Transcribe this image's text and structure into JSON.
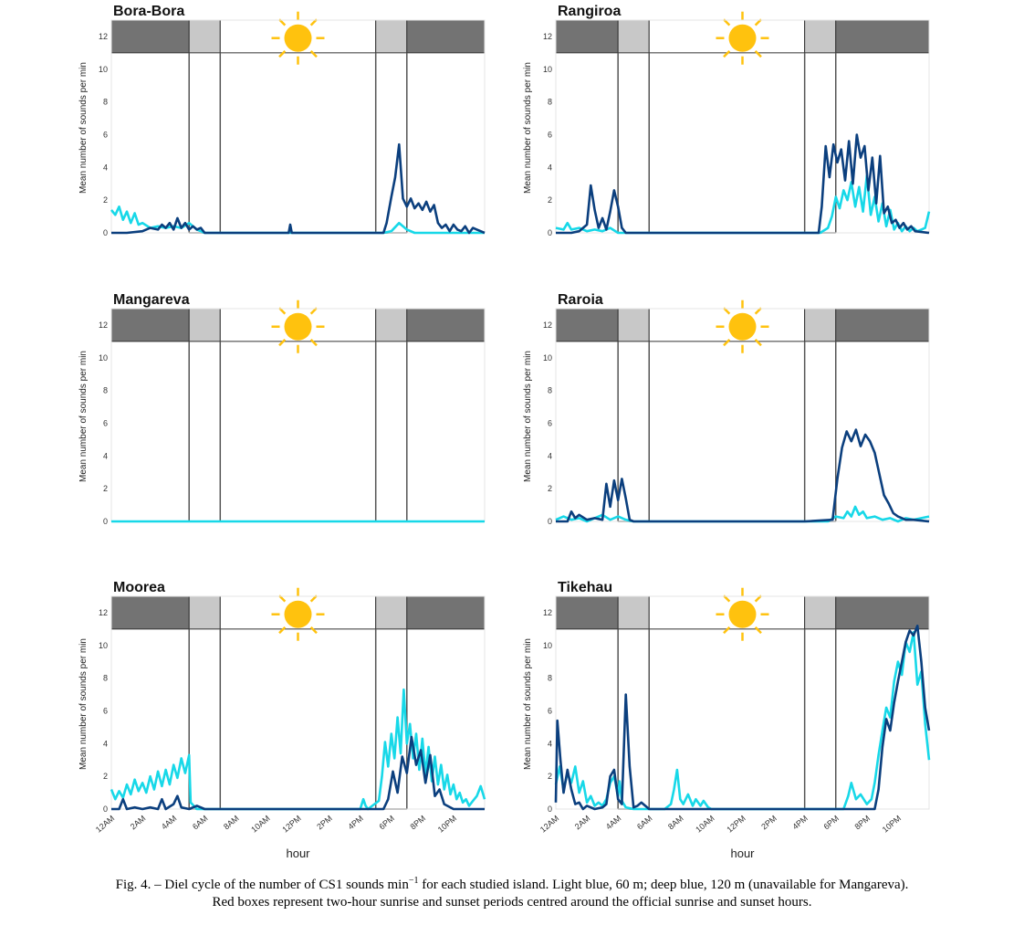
{
  "figure": {
    "x_label": "hour",
    "y_label": "Mean number of sounds per min",
    "x_ticks": [
      "12AM",
      "2AM",
      "4AM",
      "6AM",
      "8AM",
      "10AM",
      "12PM",
      "2PM",
      "4PM",
      "6PM",
      "8PM",
      "10PM"
    ],
    "x_ticks_right": [
      "12AM",
      "2AM",
      "4AM",
      "6AM",
      "8AM",
      "10AM",
      "12PM",
      "2PM",
      "4PM",
      "6PM",
      "8PM",
      "10PM"
    ],
    "y_ticks": [
      0,
      2,
      4,
      6,
      8,
      10,
      12
    ],
    "colors": {
      "light_blue": "#17d8e8",
      "deep_blue": "#0b3f7e",
      "night": "#737373",
      "twilight": "#c8c8c8",
      "sun": "#ffc20e"
    }
  },
  "caption": {
    "prefix": "Fig. 4. – Diel cycle of the number of CS1 sounds min",
    "sup": "−1",
    "line1_rest": " for each studied island. Light blue, 60 m; deep blue, 120 m (unavailable for Mangareva).",
    "line2": "Red boxes represent two-hour sunrise and sunset periods centred around the official sunrise and sunset hours."
  },
  "chart_data": [
    {
      "type": "line",
      "title": "Bora-Bora",
      "ylim": [
        0,
        13
      ],
      "xlim": [
        0,
        24
      ],
      "sunrise_box": [
        5.0,
        7.0
      ],
      "sunset_box": [
        17.0,
        19.0
      ],
      "series": [
        {
          "color_key": "light_blue",
          "x": [
            0,
            0.25,
            0.5,
            0.75,
            1,
            1.25,
            1.5,
            1.75,
            2,
            2.5,
            3,
            3.5,
            4,
            4.5,
            5,
            5.5,
            5.75,
            6,
            12,
            17.5,
            18,
            18.5,
            19,
            19.5,
            20,
            24
          ],
          "y": [
            1.4,
            1.1,
            1.6,
            0.8,
            1.3,
            0.6,
            1.2,
            0.5,
            0.6,
            0.3,
            0.4,
            0.3,
            0.4,
            0.3,
            0.6,
            0.2,
            0.1,
            0,
            0,
            0,
            0.1,
            0.6,
            0.2,
            0,
            0,
            0
          ]
        },
        {
          "color_key": "deep_blue",
          "x": [
            0,
            1,
            2,
            2.5,
            3,
            3.25,
            3.5,
            3.75,
            4,
            4.25,
            4.5,
            4.75,
            5,
            5.25,
            5.5,
            5.75,
            6,
            11.4,
            11.5,
            11.6,
            11.7,
            17.5,
            17.7,
            18,
            18.25,
            18.5,
            18.75,
            19,
            19.25,
            19.5,
            19.75,
            20,
            20.25,
            20.5,
            20.75,
            21,
            21.25,
            21.5,
            21.75,
            22,
            22.25,
            22.5,
            22.75,
            23,
            23.25,
            23.5,
            23.75,
            24
          ],
          "y": [
            0,
            0,
            0.1,
            0.3,
            0.2,
            0.5,
            0.3,
            0.6,
            0.2,
            0.9,
            0.3,
            0.6,
            0.2,
            0.4,
            0.2,
            0.3,
            0,
            0,
            0.5,
            0,
            0,
            0,
            0.6,
            2.2,
            3.4,
            5.4,
            2.1,
            1.6,
            2.1,
            1.5,
            1.8,
            1.4,
            1.9,
            1.3,
            1.7,
            0.6,
            0.3,
            0.5,
            0.1,
            0.5,
            0.2,
            0.1,
            0.4,
            0,
            0.3,
            0.2,
            0.1,
            0
          ]
        }
      ]
    },
    {
      "type": "line",
      "title": "Rangiroa",
      "ylim": [
        0,
        13
      ],
      "xlim": [
        0,
        24
      ],
      "sunrise_box": [
        4.0,
        6.0
      ],
      "sunset_box": [
        16.0,
        18.0
      ],
      "series": [
        {
          "color_key": "light_blue",
          "x": [
            0,
            0.5,
            0.75,
            1,
            1.5,
            2,
            2.5,
            3,
            3.5,
            4,
            4.5,
            5,
            16.5,
            17,
            17.5,
            17.75,
            18,
            18.25,
            18.5,
            18.75,
            19,
            19.25,
            19.5,
            19.75,
            20,
            20.25,
            20.5,
            20.75,
            21,
            21.25,
            21.5,
            21.75,
            22,
            22.25,
            22.5,
            22.75,
            23,
            23.25,
            23.5,
            23.75,
            24
          ],
          "y": [
            0.3,
            0.2,
            0.6,
            0.2,
            0.3,
            0.1,
            0.2,
            0.1,
            0.3,
            0,
            0,
            0,
            0,
            0,
            0.3,
            1.0,
            2.2,
            1.5,
            2.6,
            2.0,
            3.1,
            1.6,
            2.8,
            1.3,
            3.5,
            1.1,
            2.2,
            0.7,
            1.8,
            0.4,
            1.4,
            0.2,
            0.6,
            0.1,
            0.4,
            0.1,
            0.3,
            0.1,
            0.2,
            0.3,
            1.3
          ]
        },
        {
          "color_key": "deep_blue",
          "x": [
            0,
            1,
            1.5,
            2,
            2.25,
            2.5,
            2.75,
            3,
            3.25,
            3.5,
            3.75,
            4,
            4.25,
            4.5,
            5,
            16.5,
            16.9,
            17.1,
            17.35,
            17.6,
            17.85,
            18.1,
            18.35,
            18.6,
            18.85,
            19.1,
            19.35,
            19.6,
            19.85,
            20.1,
            20.35,
            20.6,
            20.85,
            21.1,
            21.35,
            21.6,
            21.85,
            22.1,
            22.35,
            22.6,
            22.85,
            23.1,
            24
          ],
          "y": [
            0,
            0,
            0.1,
            0.5,
            2.9,
            1.4,
            0.3,
            0.9,
            0.2,
            1.3,
            2.6,
            1.6,
            0.3,
            0,
            0,
            0,
            0,
            1.6,
            5.3,
            3.4,
            5.4,
            4.3,
            5.1,
            3.2,
            5.6,
            3.0,
            6.0,
            4.6,
            5.3,
            2.6,
            4.6,
            1.8,
            4.7,
            1.2,
            1.6,
            0.6,
            0.8,
            0.3,
            0.6,
            0.2,
            0.4,
            0.1,
            0
          ]
        }
      ]
    },
    {
      "type": "line",
      "title": "Mangareva",
      "ylim": [
        0,
        13
      ],
      "xlim": [
        0,
        24
      ],
      "sunrise_box": [
        5.0,
        7.0
      ],
      "sunset_box": [
        17.0,
        19.0
      ],
      "series": [
        {
          "color_key": "light_blue",
          "x": [
            0,
            24
          ],
          "y": [
            0,
            0
          ]
        }
      ]
    },
    {
      "type": "line",
      "title": "Raroia",
      "ylim": [
        0,
        13
      ],
      "xlim": [
        0,
        24
      ],
      "sunrise_box": [
        4.0,
        6.0
      ],
      "sunset_box": [
        16.0,
        18.0
      ],
      "series": [
        {
          "color_key": "light_blue",
          "x": [
            0,
            0.5,
            1,
            1.5,
            2,
            2.5,
            3,
            3.5,
            4,
            4.5,
            5,
            17.5,
            18,
            18.5,
            18.75,
            19,
            19.25,
            19.5,
            19.75,
            20,
            20.5,
            21,
            21.5,
            22,
            22.5,
            23,
            23.5,
            24
          ],
          "y": [
            0.1,
            0.3,
            0.1,
            0.2,
            0,
            0.2,
            0.4,
            0.1,
            0.3,
            0.1,
            0,
            0,
            0.3,
            0.2,
            0.6,
            0.3,
            0.9,
            0.4,
            0.6,
            0.2,
            0.3,
            0.1,
            0.2,
            0,
            0.2,
            0.1,
            0.2,
            0.3
          ]
        },
        {
          "color_key": "deep_blue",
          "x": [
            0,
            0.75,
            1,
            1.25,
            1.5,
            2,
            2.5,
            3,
            3.25,
            3.5,
            3.75,
            4,
            4.25,
            4.5,
            4.75,
            5,
            16,
            17.8,
            18.1,
            18.4,
            18.7,
            19,
            19.3,
            19.6,
            19.9,
            20.2,
            20.5,
            20.8,
            21.1,
            21.4,
            21.7,
            22,
            22.5,
            23,
            24
          ],
          "y": [
            0,
            0,
            0.6,
            0.2,
            0.4,
            0.1,
            0.2,
            0.1,
            2.3,
            0.9,
            2.5,
            1.3,
            2.6,
            1.4,
            0.1,
            0,
            0,
            0.1,
            2.6,
            4.5,
            5.5,
            4.9,
            5.6,
            4.6,
            5.3,
            4.9,
            4.2,
            2.9,
            1.6,
            1.1,
            0.5,
            0.3,
            0.1,
            0.1,
            0
          ]
        }
      ]
    },
    {
      "type": "line",
      "title": "Moorea",
      "ylim": [
        0,
        13
      ],
      "xlim": [
        0,
        24
      ],
      "sunrise_box": [
        5.0,
        7.0
      ],
      "sunset_box": [
        17.0,
        19.0
      ],
      "series": [
        {
          "color_key": "light_blue",
          "x": [
            0,
            0.25,
            0.5,
            0.75,
            1,
            1.25,
            1.5,
            1.75,
            2,
            2.25,
            2.5,
            2.75,
            3,
            3.25,
            3.5,
            3.75,
            4,
            4.25,
            4.5,
            4.75,
            5,
            5.1,
            5.3,
            5.5,
            16,
            16.2,
            16.35,
            16.5,
            17.2,
            17.4,
            17.6,
            17.8,
            18,
            18.2,
            18.4,
            18.6,
            18.8,
            19,
            19.2,
            19.4,
            19.6,
            19.8,
            20,
            20.2,
            20.4,
            20.6,
            20.8,
            21,
            21.2,
            21.4,
            21.6,
            21.8,
            22,
            22.2,
            22.4,
            22.6,
            22.8,
            23,
            23.25,
            23.5,
            23.75,
            24
          ],
          "y": [
            1.2,
            0.6,
            1.1,
            0.7,
            1.5,
            0.9,
            1.8,
            1.1,
            1.6,
            1.0,
            2.0,
            1.2,
            2.3,
            1.4,
            2.4,
            1.5,
            2.7,
            1.9,
            3.1,
            2.2,
            3.3,
            0.4,
            0.2,
            0,
            0,
            0.6,
            0.2,
            0,
            0.5,
            2.0,
            4.1,
            2.6,
            4.6,
            3.1,
            5.6,
            3.4,
            7.3,
            4.0,
            5.2,
            3.1,
            4.6,
            2.4,
            4.3,
            2.1,
            3.8,
            1.7,
            3.2,
            1.5,
            2.7,
            1.2,
            2.1,
            0.9,
            1.5,
            0.6,
            1.0,
            0.4,
            0.6,
            0.2,
            0.5,
            0.8,
            1.4,
            0.6
          ]
        },
        {
          "color_key": "deep_blue",
          "x": [
            0,
            0.5,
            0.75,
            1,
            1.5,
            2,
            2.5,
            3,
            3.25,
            3.5,
            4,
            4.25,
            4.5,
            5,
            5.5,
            5.75,
            6,
            17.5,
            17.8,
            18.1,
            18.4,
            18.7,
            19,
            19.3,
            19.6,
            19.9,
            20.2,
            20.5,
            20.8,
            21.1,
            21.4,
            22,
            24
          ],
          "y": [
            0,
            0,
            0.6,
            0,
            0.1,
            0,
            0.1,
            0,
            0.6,
            0,
            0.3,
            0.8,
            0.1,
            0,
            0.2,
            0.1,
            0,
            0,
            0.6,
            2.3,
            1.0,
            3.2,
            2.2,
            4.4,
            2.7,
            3.6,
            1.6,
            3.3,
            0.8,
            1.2,
            0.3,
            0,
            0
          ]
        }
      ]
    },
    {
      "type": "line",
      "title": "Tikehau",
      "ylim": [
        0,
        13
      ],
      "xlim": [
        0,
        24
      ],
      "sunrise_box": [
        4.0,
        6.0
      ],
      "sunset_box": [
        16.0,
        18.0
      ],
      "series": [
        {
          "color_key": "light_blue",
          "x": [
            0,
            0.25,
            0.5,
            0.75,
            1,
            1.25,
            1.5,
            1.75,
            2,
            2.25,
            2.5,
            2.75,
            3,
            3.25,
            3.5,
            3.75,
            4,
            4.1,
            4.25,
            4.5,
            5,
            6,
            7,
            7.4,
            7.6,
            7.8,
            8,
            8.2,
            8.5,
            8.8,
            9,
            9.3,
            9.5,
            9.8,
            10,
            10.5,
            18.5,
            18.8,
            19,
            19.3,
            19.6,
            20,
            20.3,
            20.5,
            20.75,
            21,
            21.25,
            21.5,
            21.75,
            22,
            22.25,
            22.5,
            22.75,
            23,
            23.25,
            23.5,
            23.75,
            24
          ],
          "y": [
            1.5,
            2.6,
            1.2,
            2.2,
            1.6,
            2.6,
            1.0,
            1.7,
            0.4,
            0.8,
            0.2,
            0.4,
            0.2,
            0.6,
            1.6,
            2.0,
            0.8,
            1.7,
            0.5,
            0.1,
            0,
            0,
            0,
            0.3,
            1.2,
            2.4,
            0.6,
            0.3,
            0.9,
            0.2,
            0.6,
            0.2,
            0.5,
            0.1,
            0,
            0,
            0,
            0.8,
            1.6,
            0.6,
            0.9,
            0.3,
            0.6,
            1.6,
            3.3,
            4.8,
            6.2,
            5.6,
            7.8,
            9.0,
            8.2,
            10.2,
            9.6,
            10.8,
            7.6,
            8.4,
            5.2,
            3.0
          ]
        },
        {
          "color_key": "deep_blue",
          "x": [
            0,
            0.1,
            0.3,
            0.5,
            0.75,
            1,
            1.25,
            1.5,
            1.75,
            2,
            2.25,
            2.5,
            3,
            3.25,
            3.5,
            3.75,
            4,
            4.25,
            4.5,
            4.75,
            5,
            5.25,
            5.5,
            6,
            20.5,
            20.75,
            21,
            21.25,
            21.5,
            21.75,
            22,
            22.25,
            22.5,
            22.75,
            23,
            23.25,
            23.5,
            23.75,
            24
          ],
          "y": [
            0.4,
            5.4,
            3.0,
            1.0,
            2.4,
            1.2,
            0.3,
            0.4,
            0,
            0.2,
            0.1,
            0,
            0.1,
            0.3,
            2.0,
            2.4,
            0.6,
            0.3,
            7.0,
            2.6,
            0.1,
            0.2,
            0.4,
            0,
            0,
            1.2,
            3.8,
            5.5,
            4.8,
            6.5,
            7.8,
            9.0,
            10.2,
            10.9,
            10.6,
            11.2,
            9.0,
            6.2,
            4.8
          ]
        }
      ]
    }
  ]
}
